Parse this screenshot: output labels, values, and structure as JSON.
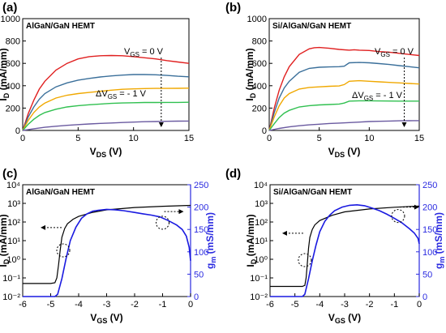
{
  "chart_data": [
    {
      "id": "a",
      "panel_label": "(a)",
      "type": "line",
      "title": "AlGaN/GaN HEMT",
      "xlabel": "V_DS (V)",
      "ylabel": "I_D (mA/mm)",
      "xlim": [
        0,
        15
      ],
      "ylim": [
        0,
        1000
      ],
      "xticks": [
        "0",
        "5",
        "10",
        "15"
      ],
      "yticks": [
        "0",
        "200",
        "400",
        "600",
        "800",
        "1000"
      ],
      "annotations": {
        "vgs_top": "V_GS = 0 V",
        "vgs_step": "ΔV_GS = - 1 V"
      },
      "series": [
        {
          "color": "#e02020",
          "x": [
            0,
            0.5,
            1,
            1.5,
            2,
            3,
            4,
            5,
            6,
            7,
            8,
            9,
            10,
            11,
            12,
            13,
            14,
            15
          ],
          "y": [
            0,
            150,
            270,
            370,
            440,
            540,
            600,
            640,
            660,
            668,
            670,
            668,
            660,
            650,
            640,
            625,
            612,
            600
          ]
        },
        {
          "color": "#3a6f9a",
          "x": [
            0,
            0.5,
            1,
            1.5,
            2,
            3,
            4,
            5,
            6,
            7,
            8,
            9,
            10,
            11,
            12,
            13,
            14,
            15
          ],
          "y": [
            0,
            120,
            210,
            280,
            330,
            390,
            425,
            450,
            465,
            478,
            488,
            495,
            500,
            500,
            498,
            492,
            485,
            480
          ]
        },
        {
          "color": "#f0a800",
          "x": [
            0,
            0.5,
            1,
            1.5,
            2,
            3,
            4,
            5,
            6,
            7,
            8,
            9,
            10,
            11,
            12,
            13,
            14,
            15
          ],
          "y": [
            0,
            90,
            160,
            210,
            245,
            290,
            315,
            330,
            340,
            350,
            360,
            368,
            372,
            375,
            376,
            376,
            377,
            378
          ]
        },
        {
          "color": "#30c050",
          "x": [
            0,
            0.5,
            1,
            1.5,
            2,
            3,
            4,
            5,
            6,
            7,
            8,
            9,
            10,
            11,
            12,
            13,
            14,
            15
          ],
          "y": [
            0,
            55,
            100,
            135,
            160,
            190,
            210,
            222,
            230,
            236,
            242,
            246,
            248,
            250,
            250,
            251,
            251,
            252
          ]
        },
        {
          "color": "#6a5aa0",
          "x": [
            0,
            1,
            2,
            3,
            4,
            5,
            6,
            7,
            8,
            9,
            10,
            11,
            12,
            13,
            14,
            15
          ],
          "y": [
            0,
            15,
            28,
            38,
            46,
            52,
            58,
            63,
            67,
            71,
            75,
            78,
            80,
            82,
            83,
            84
          ]
        }
      ]
    },
    {
      "id": "b",
      "panel_label": "(b)",
      "type": "line",
      "title": "Si/AlGaN/GaN HEMT",
      "xlabel": "V_DS (V)",
      "ylabel": "I_D (mA/mm)",
      "xlim": [
        0,
        15
      ],
      "ylim": [
        0,
        1000
      ],
      "xticks": [
        "0",
        "5",
        "10",
        "15"
      ],
      "yticks": [
        "0",
        "200",
        "400",
        "600",
        "800",
        "1000"
      ],
      "annotations": {
        "vgs_top": "V_GS = 0 V",
        "vgs_step": "ΔV_GS = - 1 V"
      },
      "series": [
        {
          "color": "#e02020",
          "x": [
            0,
            0.5,
            1,
            1.5,
            2,
            3,
            4,
            4.5,
            5,
            6,
            7,
            8,
            8.5,
            9,
            10,
            11,
            12,
            13,
            14,
            15
          ],
          "y": [
            0,
            200,
            360,
            480,
            570,
            680,
            730,
            740,
            742,
            735,
            725,
            718,
            722,
            718,
            715,
            705,
            700,
            690,
            680,
            670
          ]
        },
        {
          "color": "#3a6f9a",
          "x": [
            0,
            0.5,
            1,
            1.5,
            2,
            3,
            4,
            5,
            6,
            7,
            7.5,
            8,
            9,
            10,
            11,
            12,
            13,
            14,
            15
          ],
          "y": [
            0,
            160,
            290,
            380,
            440,
            520,
            555,
            565,
            568,
            570,
            575,
            605,
            608,
            605,
            598,
            590,
            580,
            570,
            560
          ]
        },
        {
          "color": "#f0a800",
          "x": [
            0,
            0.5,
            1,
            1.5,
            2,
            3,
            4,
            5,
            6,
            7,
            7.5,
            8,
            9,
            10,
            11,
            12,
            13,
            14,
            15
          ],
          "y": [
            0,
            120,
            220,
            290,
            330,
            370,
            385,
            390,
            395,
            398,
            410,
            440,
            445,
            440,
            435,
            430,
            425,
            420,
            415
          ]
        },
        {
          "color": "#30c050",
          "x": [
            0,
            0.5,
            1,
            1.5,
            2,
            3,
            4,
            5,
            6,
            7,
            7.5,
            8,
            9,
            10,
            11,
            12,
            13,
            14,
            15
          ],
          "y": [
            0,
            60,
            115,
            155,
            180,
            210,
            222,
            228,
            232,
            236,
            245,
            262,
            265,
            265,
            264,
            263,
            262,
            262,
            262
          ]
        },
        {
          "color": "#6a5aa0",
          "x": [
            0,
            1,
            2,
            3,
            4,
            5,
            6,
            7,
            8,
            9,
            10,
            11,
            12,
            13,
            14,
            15
          ],
          "y": [
            0,
            18,
            32,
            42,
            50,
            56,
            62,
            66,
            70,
            75,
            80,
            82,
            84,
            86,
            87,
            88
          ]
        }
      ]
    },
    {
      "id": "c",
      "panel_label": "(c)",
      "type": "line",
      "title": "AlGaN/GaN HEMT",
      "xlabel": "V_GS (V)",
      "ylabel": "I_D (mA/mm)",
      "ylabel_right": "g_m (mS/mm)",
      "xlim": [
        -6,
        0
      ],
      "ylim_log": [
        -2,
        4
      ],
      "ylim_right": [
        0,
        250
      ],
      "xticks": [
        "-6",
        "-5",
        "-4",
        "-3",
        "-2",
        "-1",
        "0"
      ],
      "yticks_log": [
        "10⁻²",
        "10⁻¹",
        "10⁰",
        "10¹",
        "10²",
        "10³",
        "10⁴"
      ],
      "yticks_right": [
        "0",
        "50",
        "100",
        "150",
        "200",
        "250"
      ],
      "series": [
        {
          "color": "#000000",
          "axis": "left_log",
          "x": [
            -6,
            -5.5,
            -5,
            -4.85,
            -4.78,
            -4.72,
            -4.66,
            -4.6,
            -4.5,
            -4.4,
            -4.2,
            -4.0,
            -3.5,
            -3.0,
            -2.0,
            -1.0,
            0
          ],
          "y": [
            0.05,
            0.05,
            0.05,
            0.055,
            0.1,
            0.5,
            3,
            15,
            45,
            80,
            140,
            200,
            330,
            450,
            600,
            700,
            780
          ]
        },
        {
          "color": "#1a1ae0",
          "axis": "right",
          "x": [
            -6,
            -4.85,
            -4.75,
            -4.6,
            -4.45,
            -4.3,
            -4.1,
            -3.9,
            -3.7,
            -3.5,
            -3.3,
            -3.0,
            -2.7,
            -2.4,
            -2.0,
            -1.7,
            -1.4,
            -1.1,
            -0.8,
            -0.5,
            -0.3,
            -0.15,
            -0.05,
            0
          ],
          "y": [
            0,
            0,
            5,
            40,
            85,
            125,
            155,
            175,
            185,
            191,
            193,
            195,
            194,
            192,
            188,
            185,
            182,
            178,
            170,
            160,
            150,
            135,
            110,
            80
          ]
        }
      ]
    },
    {
      "id": "d",
      "panel_label": "(d)",
      "type": "line",
      "title": "Si/AlGaN/GaN HEMT",
      "xlabel": "V_GS (V)",
      "ylabel": "I_D (mA/mm)",
      "ylabel_right": "g_m (mS/mm)",
      "xlim": [
        -6,
        0
      ],
      "ylim_log": [
        -2,
        4
      ],
      "ylim_right": [
        0,
        250
      ],
      "xticks": [
        "-6",
        "-5",
        "-4",
        "-3",
        "-2",
        "-1",
        "0"
      ],
      "yticks_log": [
        "10⁻²",
        "10⁻¹",
        "10⁰",
        "10¹",
        "10²",
        "10³",
        "10⁴"
      ],
      "yticks_right": [
        "0",
        "50",
        "100",
        "150",
        "200",
        "250"
      ],
      "series": [
        {
          "color": "#000000",
          "axis": "left_log",
          "x": [
            -6,
            -5.5,
            -5,
            -4.7,
            -4.6,
            -4.55,
            -4.5,
            -4.45,
            -4.4,
            -4.3,
            -4.2,
            -4.0,
            -3.5,
            -3.0,
            -2.0,
            -1.0,
            0
          ],
          "y": [
            0.035,
            0.035,
            0.035,
            0.035,
            0.04,
            0.1,
            0.6,
            4,
            15,
            40,
            70,
            120,
            230,
            350,
            500,
            620,
            720
          ]
        },
        {
          "color": "#1a1ae0",
          "axis": "right",
          "x": [
            -6,
            -4.7,
            -4.6,
            -4.45,
            -4.3,
            -4.15,
            -4.0,
            -3.8,
            -3.6,
            -3.4,
            -3.1,
            -2.8,
            -2.5,
            -2.2,
            -1.9,
            -1.6,
            -1.3,
            -1.0,
            -0.7,
            -0.4,
            -0.2,
            -0.05,
            0
          ],
          "y": [
            0,
            0,
            5,
            40,
            80,
            115,
            145,
            168,
            182,
            192,
            200,
            204,
            205,
            203,
            198,
            192,
            184,
            175,
            165,
            152,
            142,
            130,
            118
          ]
        }
      ]
    }
  ]
}
